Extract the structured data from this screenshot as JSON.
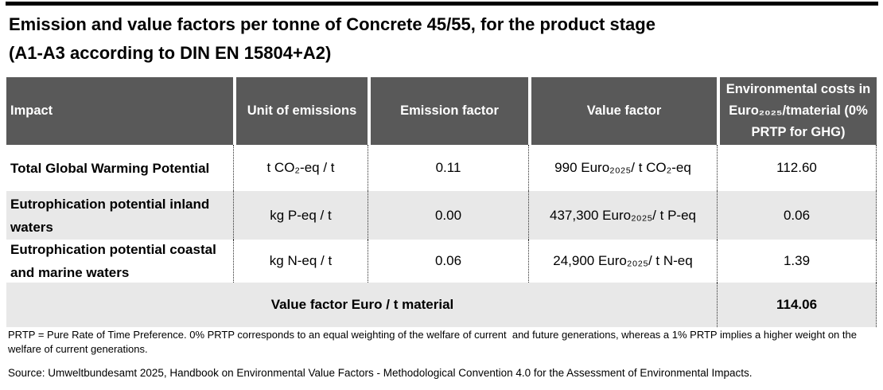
{
  "title": {
    "line1": "Emission and value factors per tonne of Concrete 45/55, for the product stage",
    "line2": "(A1-A3 according to DIN EN 15804+A2)"
  },
  "table": {
    "columns": {
      "impact": "Impact",
      "unit": "Unit of emissions",
      "emission_factor": "Emission factor",
      "value_factor": "Value factor",
      "env_cost": "Environmental costs in Euro₂₀₂₅/tmaterial (0% PRTP for GHG)"
    },
    "rows": [
      {
        "impact": "Total Global Warming Potential",
        "unit": "t CO₂-eq / t",
        "emission_factor": "0.11",
        "value_factor": "990 Euro₂₀₂₅/ t CO₂-eq",
        "env_cost": "112.60"
      },
      {
        "impact": "Eutrophication potential inland waters",
        "unit": "kg P-eq / t",
        "emission_factor": "0.00",
        "value_factor": "437,300 Euro₂₀₂₅/ t P-eq",
        "env_cost": "0.06"
      },
      {
        "impact": "Eutrophication potential coastal and marine waters",
        "unit": "kg N-eq / t",
        "emission_factor": "0.06",
        "value_factor": "24,900 Euro₂₀₂₅/ t N-eq",
        "env_cost": "1.39"
      }
    ],
    "total": {
      "label": "Value factor Euro / t material",
      "value": "114.06"
    }
  },
  "footnote": "PRTP = Pure Rate of Time Preference. 0% PRTP corresponds to an equal weighting of the welfare of current  and future generations, whereas a 1% PRTP implies a higher weight on the welfare of current generations.",
  "source": "Source: Umweltbundesamt 2025, Handbook on Environmental Value Factors - Methodological Convention 4.0 for the Assessment of Environmental Impacts.",
  "colors": {
    "header_bg": "#595959",
    "header_text": "#ffffff",
    "row_alt_bg": "#e8e8e8",
    "rule": "#000000"
  }
}
